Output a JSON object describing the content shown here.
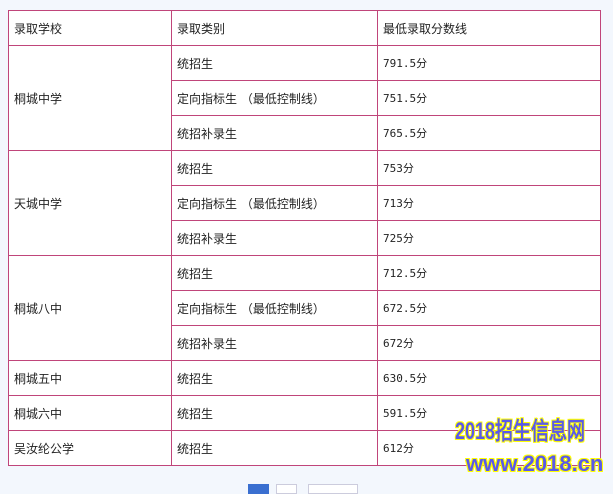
{
  "headers": [
    "录取学校",
    "录取类别",
    "最低录取分数线"
  ],
  "schools": [
    {
      "name": "桐城中学",
      "rows": [
        {
          "category": "统招生",
          "score": "791.5分"
        },
        {
          "category": "定向指标生 （最低控制线）",
          "score": "751.5分"
        },
        {
          "category": "统招补录生",
          "score": "765.5分"
        }
      ]
    },
    {
      "name": "天城中学",
      "rows": [
        {
          "category": "统招生",
          "score": "753分"
        },
        {
          "category": "定向指标生 （最低控制线）",
          "score": "713分"
        },
        {
          "category": "统招补录生",
          "score": "725分"
        }
      ]
    },
    {
      "name": "桐城八中",
      "rows": [
        {
          "category": "统招生",
          "score": "712.5分"
        },
        {
          "category": "定向指标生 （最低控制线）",
          "score": "672.5分"
        },
        {
          "category": "统招补录生",
          "score": "672分"
        }
      ]
    },
    {
      "name": "桐城五中",
      "rows": [
        {
          "category": "统招生",
          "score": "630.5分"
        }
      ]
    },
    {
      "name": "桐城六中",
      "rows": [
        {
          "category": "统招生",
          "score": "591.5分"
        }
      ]
    },
    {
      "name": "吴汝纶公学",
      "rows": [
        {
          "category": "统招生",
          "score": "612分"
        }
      ]
    }
  ],
  "watermark": {
    "line1": "2018招生信息网",
    "line2": "www.2018.cn"
  },
  "colors": {
    "border": "#c0457a",
    "watermark": "#5a5ae8",
    "active_page": "#3a6fd0"
  }
}
